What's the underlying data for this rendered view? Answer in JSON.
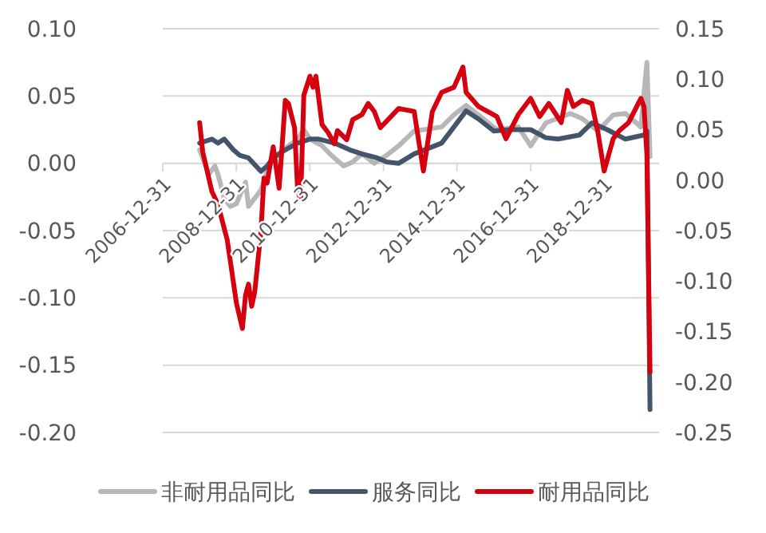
{
  "chart_data": {
    "type": "line",
    "legend": "bottom",
    "grid": "y",
    "xlim": [
      "2006-12-31",
      "2020-06-30"
    ],
    "xticks": [
      "2006-12-31",
      "2008-12-31",
      "2010-12-31",
      "2012-12-31",
      "2014-12-31",
      "2016-12-31",
      "2018-12-31"
    ],
    "ylim": [
      -0.2,
      0.1
    ],
    "yticks": [
      {
        "value": -0.2,
        "label": "-0.20"
      },
      {
        "value": -0.15,
        "label": "-0.15"
      },
      {
        "value": -0.1,
        "label": "-0.10"
      },
      {
        "value": -0.05,
        "label": "-0.05"
      },
      {
        "value": 0,
        "label": "0.00"
      },
      {
        "value": 0.05,
        "label": "0.05"
      },
      {
        "value": 0.1,
        "label": "0.10"
      }
    ],
    "y2lim": [
      -0.25,
      0.15
    ],
    "y2ticks": [
      {
        "value": -0.25,
        "label": "-0.25"
      },
      {
        "value": -0.2,
        "label": "-0.20"
      },
      {
        "value": -0.15,
        "label": "-0.15"
      },
      {
        "value": -0.1,
        "label": "-0.10"
      },
      {
        "value": -0.05,
        "label": "-0.05"
      },
      {
        "value": 0,
        "label": "0.00"
      },
      {
        "value": 0.05,
        "label": "0.05"
      },
      {
        "value": 0.1,
        "label": "0.10"
      },
      {
        "value": 0.15,
        "label": "0.15"
      }
    ],
    "series": [
      {
        "name": "非耐用品同比",
        "color": "#b7b7b7",
        "x": [
          "2008-01",
          "2008-02",
          "2008-04",
          "2008-06",
          "2008-07",
          "2008-09",
          "2008-11",
          "2009-01",
          "2009-04",
          "2009-05",
          "2009-07",
          "2009-09",
          "2009-11",
          "2010-01",
          "2010-06",
          "2010-09",
          "2010-11",
          "2011-01",
          "2011-05",
          "2011-08",
          "2011-12",
          "2012-03",
          "2012-06",
          "2012-10",
          "2013-02",
          "2013-06",
          "2013-11",
          "2014-08",
          "2014-12",
          "2015-04",
          "2015-08",
          "2016-02",
          "2016-09",
          "2017-01",
          "2017-06",
          "2018-02",
          "2018-06",
          "2018-11",
          "2019-04",
          "2019-08",
          "2020-01",
          "2020-03",
          "2020-04"
        ],
        "values": [
          0.01,
          0.004,
          -0.008,
          -0.002,
          -0.008,
          -0.026,
          -0.032,
          -0.03,
          -0.014,
          -0.032,
          -0.026,
          -0.02,
          -0.006,
          0.004,
          0.013,
          0.018,
          0.025,
          0.018,
          0.013,
          0.006,
          -0.002,
          0.001,
          0.007,
          0.0,
          0.006,
          0.013,
          0.024,
          0.027,
          0.036,
          0.043,
          0.036,
          0.025,
          0.027,
          0.013,
          0.03,
          0.037,
          0.033,
          0.024,
          0.036,
          0.037,
          0.027,
          0.075,
          0.005
        ]
      },
      {
        "name": "服务同比",
        "color": "#44546a",
        "x": [
          "2008-01",
          "2008-05",
          "2008-07",
          "2008-09",
          "2008-12",
          "2009-02",
          "2009-05",
          "2009-09",
          "2009-11",
          "2010-01",
          "2010-05",
          "2010-09",
          "2011-01",
          "2011-04",
          "2011-09",
          "2012-02",
          "2012-06",
          "2012-11",
          "2013-02",
          "2013-06",
          "2013-11",
          "2014-08",
          "2014-12",
          "2015-04",
          "2015-08",
          "2016-01",
          "2016-06",
          "2017-01",
          "2017-06",
          "2017-10",
          "2018-05",
          "2018-09",
          "2019-02",
          "2019-08",
          "2020-02",
          "2020-03",
          "2020-04"
        ],
        "values": [
          0.015,
          0.018,
          0.015,
          0.018,
          0.01,
          0.006,
          0.004,
          -0.006,
          -0.002,
          0.004,
          0.01,
          0.015,
          0.018,
          0.018,
          0.015,
          0.01,
          0.007,
          0.004,
          0.001,
          0.0,
          0.007,
          0.015,
          0.027,
          0.039,
          0.033,
          0.024,
          0.025,
          0.025,
          0.019,
          0.018,
          0.021,
          0.03,
          0.025,
          0.018,
          0.021,
          0.024,
          -0.183
        ]
      },
      {
        "name": "耐用品同比",
        "color": "#d7000f",
        "axis": "y2",
        "x": [
          "2008-01",
          "2008-02",
          "2008-05",
          "2008-07",
          "2008-10",
          "2009-01",
          "2009-03",
          "2009-04",
          "2009-05",
          "2009-06",
          "2009-07",
          "2009-09",
          "2009-10",
          "2009-11",
          "2010-01",
          "2010-03",
          "2010-05",
          "2010-06",
          "2010-08",
          "2010-09",
          "2010-10",
          "2010-11",
          "2011-01",
          "2011-02",
          "2011-03",
          "2011-05",
          "2011-07",
          "2011-09",
          "2011-10",
          "2012-01",
          "2012-03",
          "2012-06",
          "2012-08",
          "2012-10",
          "2012-12",
          "2013-06",
          "2013-11",
          "2014-02",
          "2014-05",
          "2014-08",
          "2014-12",
          "2015-03",
          "2015-04",
          "2015-08",
          "2016-02",
          "2016-05",
          "2016-09",
          "2017-01",
          "2017-04",
          "2017-07",
          "2017-11",
          "2018-01",
          "2018-03",
          "2018-06",
          "2018-09",
          "2018-11",
          "2019-01",
          "2019-04",
          "2019-06",
          "2019-09",
          "2020-01",
          "2020-02",
          "2020-03",
          "2020-04"
        ],
        "values": [
          0.057,
          0.028,
          -0.011,
          -0.024,
          -0.059,
          -0.122,
          -0.147,
          -0.114,
          -0.103,
          -0.125,
          -0.111,
          -0.051,
          0.002,
          -0.003,
          0.033,
          -0.008,
          0.079,
          0.076,
          0.052,
          -0.011,
          -0.019,
          0.084,
          0.103,
          0.092,
          0.103,
          0.055,
          0.047,
          0.036,
          0.049,
          0.04,
          0.06,
          0.065,
          0.076,
          0.068,
          0.052,
          0.071,
          0.068,
          0.009,
          0.068,
          0.087,
          0.092,
          0.112,
          0.087,
          0.073,
          0.063,
          0.041,
          0.065,
          0.081,
          0.063,
          0.076,
          0.057,
          0.089,
          0.073,
          0.079,
          0.076,
          0.047,
          0.009,
          0.041,
          0.049,
          0.057,
          0.081,
          0.073,
          0.025,
          -0.19
        ]
      }
    ]
  }
}
